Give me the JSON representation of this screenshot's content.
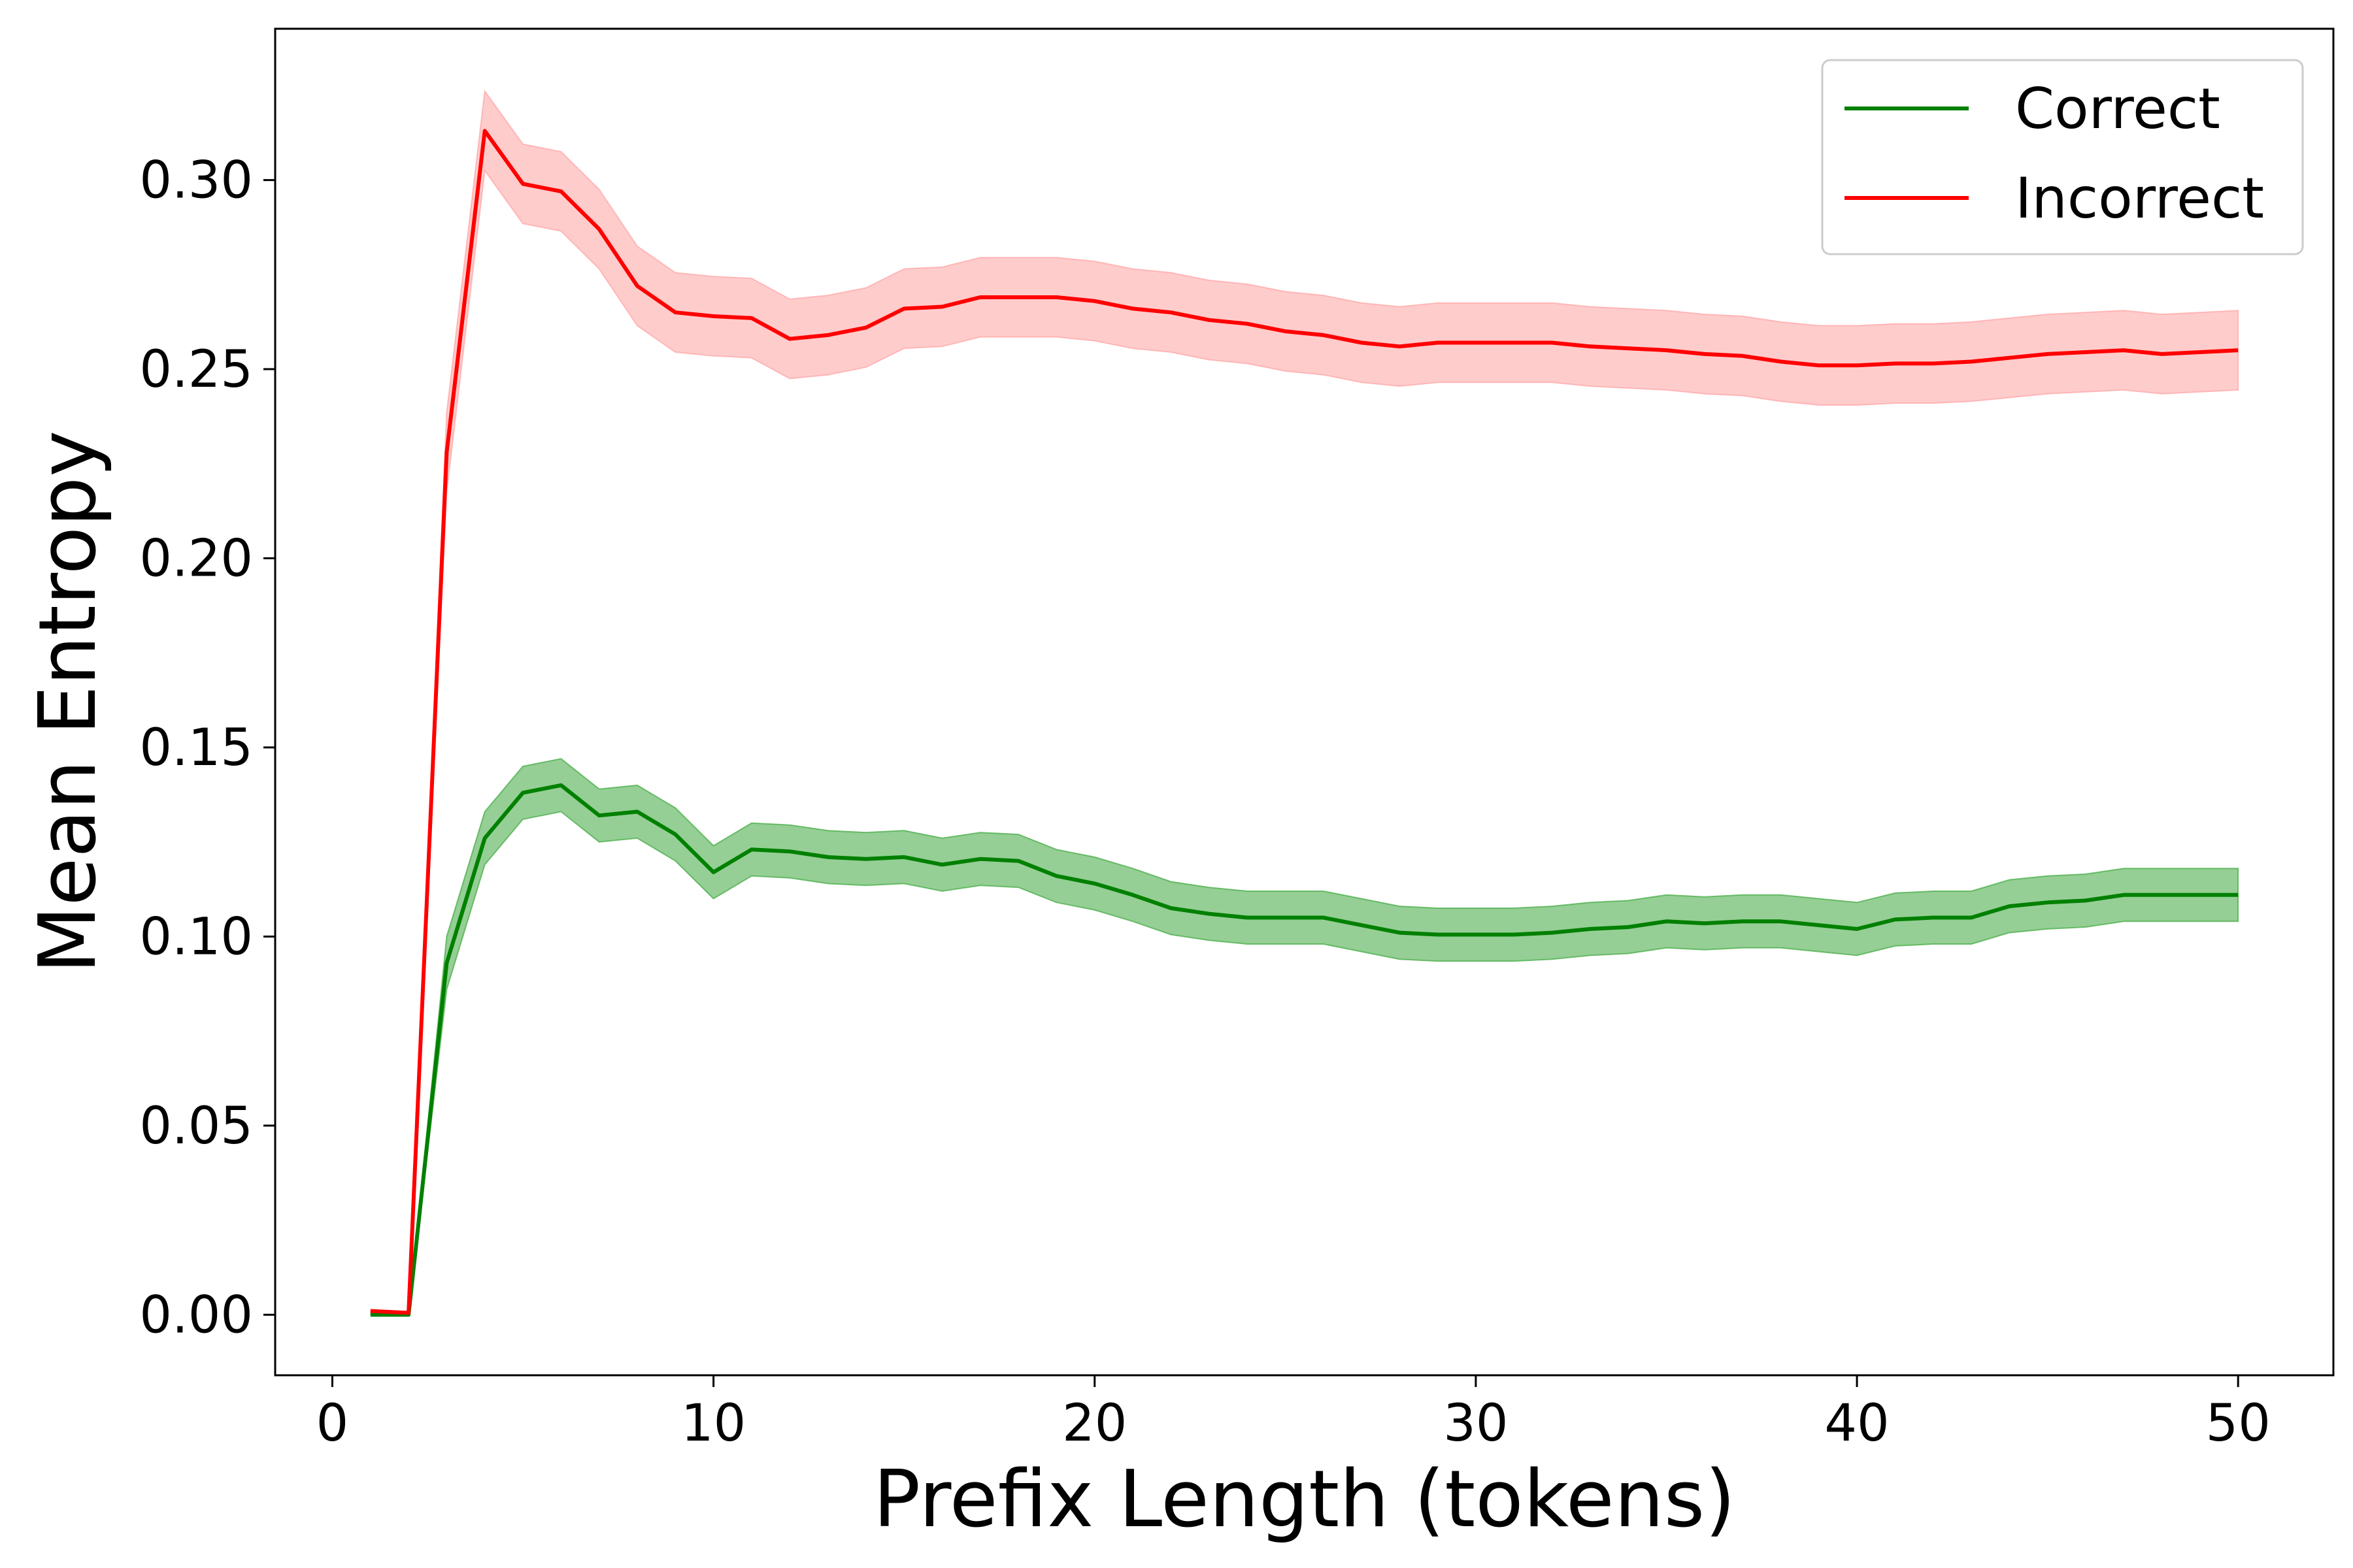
{
  "chart_data": {
    "type": "line",
    "title": "",
    "xlabel": "Prefix Length (tokens)",
    "ylabel": "Mean Entropy",
    "xlim": [
      -1.5,
      52.5
    ],
    "ylim": [
      -0.016,
      0.34
    ],
    "xticks": [
      0,
      10,
      20,
      30,
      40,
      50
    ],
    "xtick_labels": [
      "0",
      "10",
      "20",
      "30",
      "40",
      "50"
    ],
    "yticks": [
      0.0,
      0.05,
      0.1,
      0.15,
      0.2,
      0.25,
      0.3
    ],
    "ytick_labels": [
      "0.00",
      "0.05",
      "0.10",
      "0.15",
      "0.20",
      "0.25",
      "0.30"
    ],
    "grid": false,
    "legend_position": "top-right",
    "x": [
      1,
      2,
      3,
      4,
      5,
      6,
      7,
      8,
      9,
      10,
      11,
      12,
      13,
      14,
      15,
      16,
      17,
      18,
      19,
      20,
      21,
      22,
      23,
      24,
      25,
      26,
      27,
      28,
      29,
      30,
      31,
      32,
      33,
      34,
      35,
      36,
      37,
      38,
      39,
      40,
      41,
      42,
      43,
      44,
      45,
      46,
      47,
      48,
      49,
      50
    ],
    "series": [
      {
        "name": "Correct",
        "color": "#008000",
        "band_color": "#2ca02c",
        "values": [
          0.0,
          0.0,
          0.093,
          0.126,
          0.138,
          0.14,
          0.132,
          0.133,
          0.127,
          0.117,
          0.123,
          0.1225,
          0.121,
          0.1205,
          0.121,
          0.119,
          0.1205,
          0.12,
          0.116,
          0.114,
          0.111,
          0.1075,
          0.106,
          0.105,
          0.105,
          0.105,
          0.103,
          0.101,
          0.1005,
          0.1005,
          0.1005,
          0.101,
          0.102,
          0.1025,
          0.104,
          0.1035,
          0.104,
          0.104,
          0.103,
          0.102,
          0.1045,
          0.105,
          0.105,
          0.108,
          0.109,
          0.1095,
          0.111,
          0.111,
          0.111,
          0.111
        ],
        "band": 0.007
      },
      {
        "name": "Incorrect",
        "color": "#ff0000",
        "band_color": "#ff9999",
        "values": [
          0.001,
          0.0005,
          0.228,
          0.313,
          0.299,
          0.297,
          0.287,
          0.272,
          0.265,
          0.264,
          0.2635,
          0.258,
          0.259,
          0.261,
          0.266,
          0.2665,
          0.269,
          0.269,
          0.269,
          0.268,
          0.266,
          0.265,
          0.263,
          0.262,
          0.26,
          0.259,
          0.257,
          0.256,
          0.257,
          0.257,
          0.257,
          0.257,
          0.256,
          0.2555,
          0.255,
          0.254,
          0.2535,
          0.252,
          0.251,
          0.251,
          0.2515,
          0.2515,
          0.252,
          0.253,
          0.254,
          0.2545,
          0.255,
          0.254,
          0.2545,
          0.255
        ],
        "band": 0.0105
      }
    ]
  }
}
